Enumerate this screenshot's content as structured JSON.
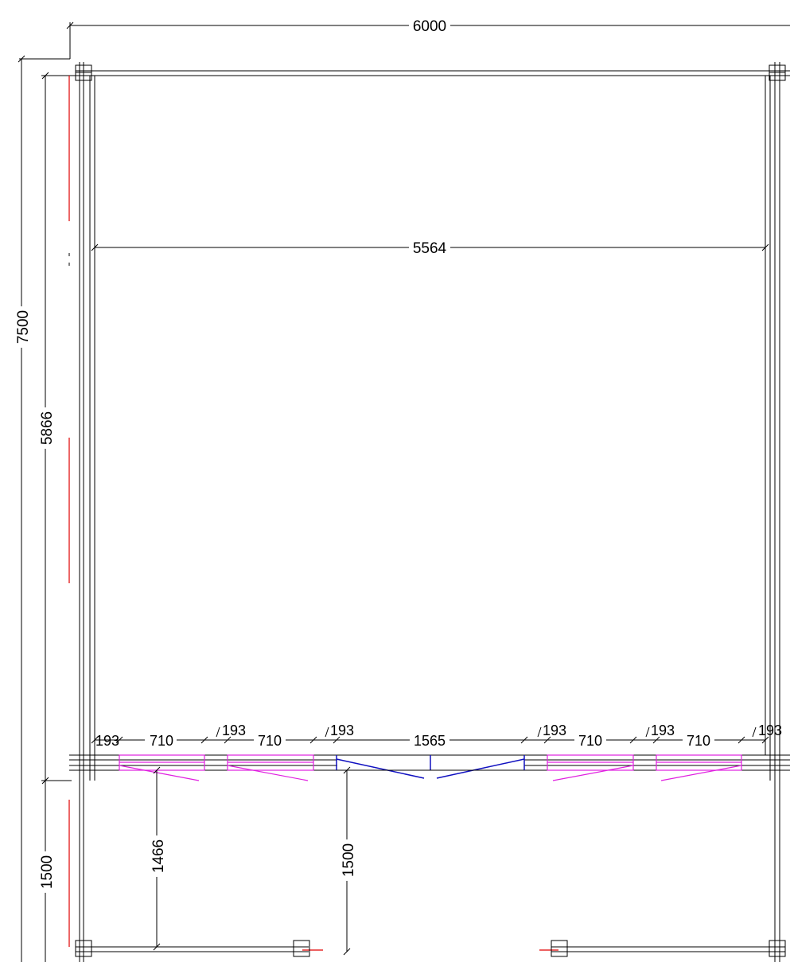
{
  "drawing": {
    "overall_width": "6000",
    "overall_depth": "7500",
    "inner_width": "5564",
    "inner_depth": "5866",
    "porch_depth": "1500",
    "window_depth_left": "1466",
    "door_depth": "1500",
    "front_wall_segments": [
      "193",
      "710",
      "193",
      "710",
      "193",
      "1565",
      "193",
      "710",
      "193",
      "710",
      "193"
    ]
  },
  "colors": {
    "wall": "#000000",
    "window": "#e020e0",
    "door": "#1010c0",
    "edge_marker": "#e00000"
  }
}
